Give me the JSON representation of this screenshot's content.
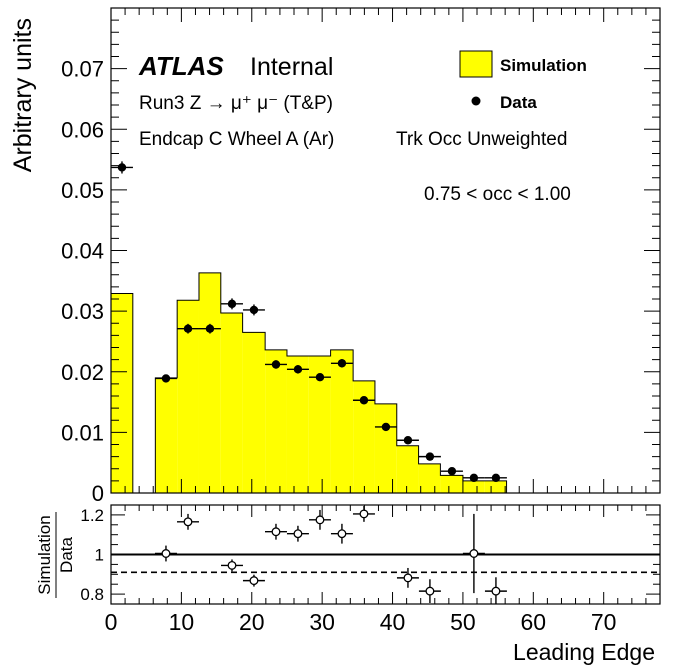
{
  "chart_data": [
    {
      "type": "bar",
      "ylabel": "Arbitrary units",
      "xlim": [
        0,
        78
      ],
      "ylim": [
        0,
        0.08
      ],
      "yticks": [
        "0",
        "0.01",
        "0.02",
        "0.03",
        "0.04",
        "0.05",
        "0.06",
        "0.07"
      ],
      "ytick_values": [
        0,
        0.01,
        0.02,
        0.03,
        0.04,
        0.05,
        0.06,
        0.07
      ],
      "atlas": "ATLAS",
      "atlas_status": "Internal",
      "process": "Run3 Z → μ⁺ μ⁻ (T&P)",
      "region": "Endcap C Wheel A (Ar)",
      "weighting": "Trk Occ Unweighted",
      "selection": "0.75 < occ < 1.00",
      "legend_position": "top-right",
      "colors": {
        "simulation_fill": "#ffff00",
        "line": "#000000"
      },
      "series": [
        {
          "name": "Simulation",
          "style": "filled-histogram",
          "bins": [
            {
              "x0": 0.0,
              "x1": 3.1,
              "y": 0.0329
            },
            {
              "x0": 6.3,
              "x1": 9.4,
              "y": 0.019
            },
            {
              "x0": 9.4,
              "x1": 12.5,
              "y": 0.0318
            },
            {
              "x0": 12.5,
              "x1": 15.6,
              "y": 0.0363
            },
            {
              "x0": 15.6,
              "x1": 18.7,
              "y": 0.0297
            },
            {
              "x0": 18.7,
              "x1": 21.9,
              "y": 0.0265
            },
            {
              "x0": 21.9,
              "x1": 25.0,
              "y": 0.0236
            },
            {
              "x0": 25.0,
              "x1": 28.1,
              "y": 0.0226
            },
            {
              "x0": 28.1,
              "x1": 31.2,
              "y": 0.0226
            },
            {
              "x0": 31.2,
              "x1": 34.4,
              "y": 0.0236
            },
            {
              "x0": 34.4,
              "x1": 37.5,
              "y": 0.0185
            },
            {
              "x0": 37.5,
              "x1": 40.6,
              "y": 0.0147
            },
            {
              "x0": 40.6,
              "x1": 43.7,
              "y": 0.0078
            },
            {
              "x0": 43.7,
              "x1": 46.8,
              "y": 0.0048
            },
            {
              "x0": 46.8,
              "x1": 50.0,
              "y": 0.0029
            },
            {
              "x0": 50.0,
              "x1": 53.1,
              "y": 0.002
            },
            {
              "x0": 53.1,
              "x1": 56.2,
              "y": 0.002
            }
          ]
        },
        {
          "name": "Data",
          "style": "points-with-errors",
          "x": [
            1.56,
            7.81,
            10.94,
            14.06,
            17.19,
            20.31,
            23.44,
            26.56,
            29.69,
            32.81,
            35.94,
            39.06,
            42.19,
            45.31,
            48.44,
            51.56,
            54.69
          ],
          "y": [
            0.0537,
            0.0189,
            0.0271,
            0.0271,
            0.0312,
            0.0302,
            0.0212,
            0.0204,
            0.0191,
            0.0214,
            0.0153,
            0.0109,
            0.0087,
            0.006,
            0.0036,
            0.0025,
            0.0025
          ],
          "xerr": 1.56,
          "yerr": [
            0.001,
            0.0006,
            0.0008,
            0.0008,
            0.0009,
            0.0009,
            0.0007,
            0.0007,
            0.0006,
            0.0007,
            0.0006,
            0.0005,
            0.0004,
            0.0003,
            0.0002,
            0.0002,
            0.0002
          ]
        }
      ]
    },
    {
      "type": "scatter",
      "ylabel": "Simulation / Data",
      "ylabel_num": "Simulation",
      "ylabel_den": "Data",
      "xlabel": "Leading Edge",
      "xlim": [
        0,
        78
      ],
      "ylim": [
        0.75,
        1.25
      ],
      "yticks": [
        "0.8",
        "1",
        "1.2"
      ],
      "ytick_values": [
        0.8,
        1.0,
        1.2
      ],
      "xticks": [
        "0",
        "10",
        "20",
        "30",
        "40",
        "50",
        "60",
        "70"
      ],
      "xtick_values": [
        0,
        10,
        20,
        30,
        40,
        50,
        60,
        70
      ],
      "reference_lines": [
        1.0,
        0.91
      ],
      "series": [
        {
          "style": "open-points-with-errors",
          "x": [
            7.81,
            10.94,
            17.19,
            20.31,
            23.44,
            26.56,
            29.69,
            32.81,
            35.94,
            42.19,
            45.31,
            51.56,
            54.69
          ],
          "y": [
            1.005,
            1.165,
            0.945,
            0.868,
            1.115,
            1.105,
            1.175,
            1.105,
            1.205,
            0.882,
            0.815,
            1.005,
            0.815
          ],
          "xerr": 1.56,
          "yerr": [
            0.04,
            0.04,
            0.03,
            0.03,
            0.04,
            0.04,
            0.05,
            0.05,
            0.04,
            0.05,
            0.06,
            0.2,
            0.07
          ]
        }
      ]
    }
  ]
}
